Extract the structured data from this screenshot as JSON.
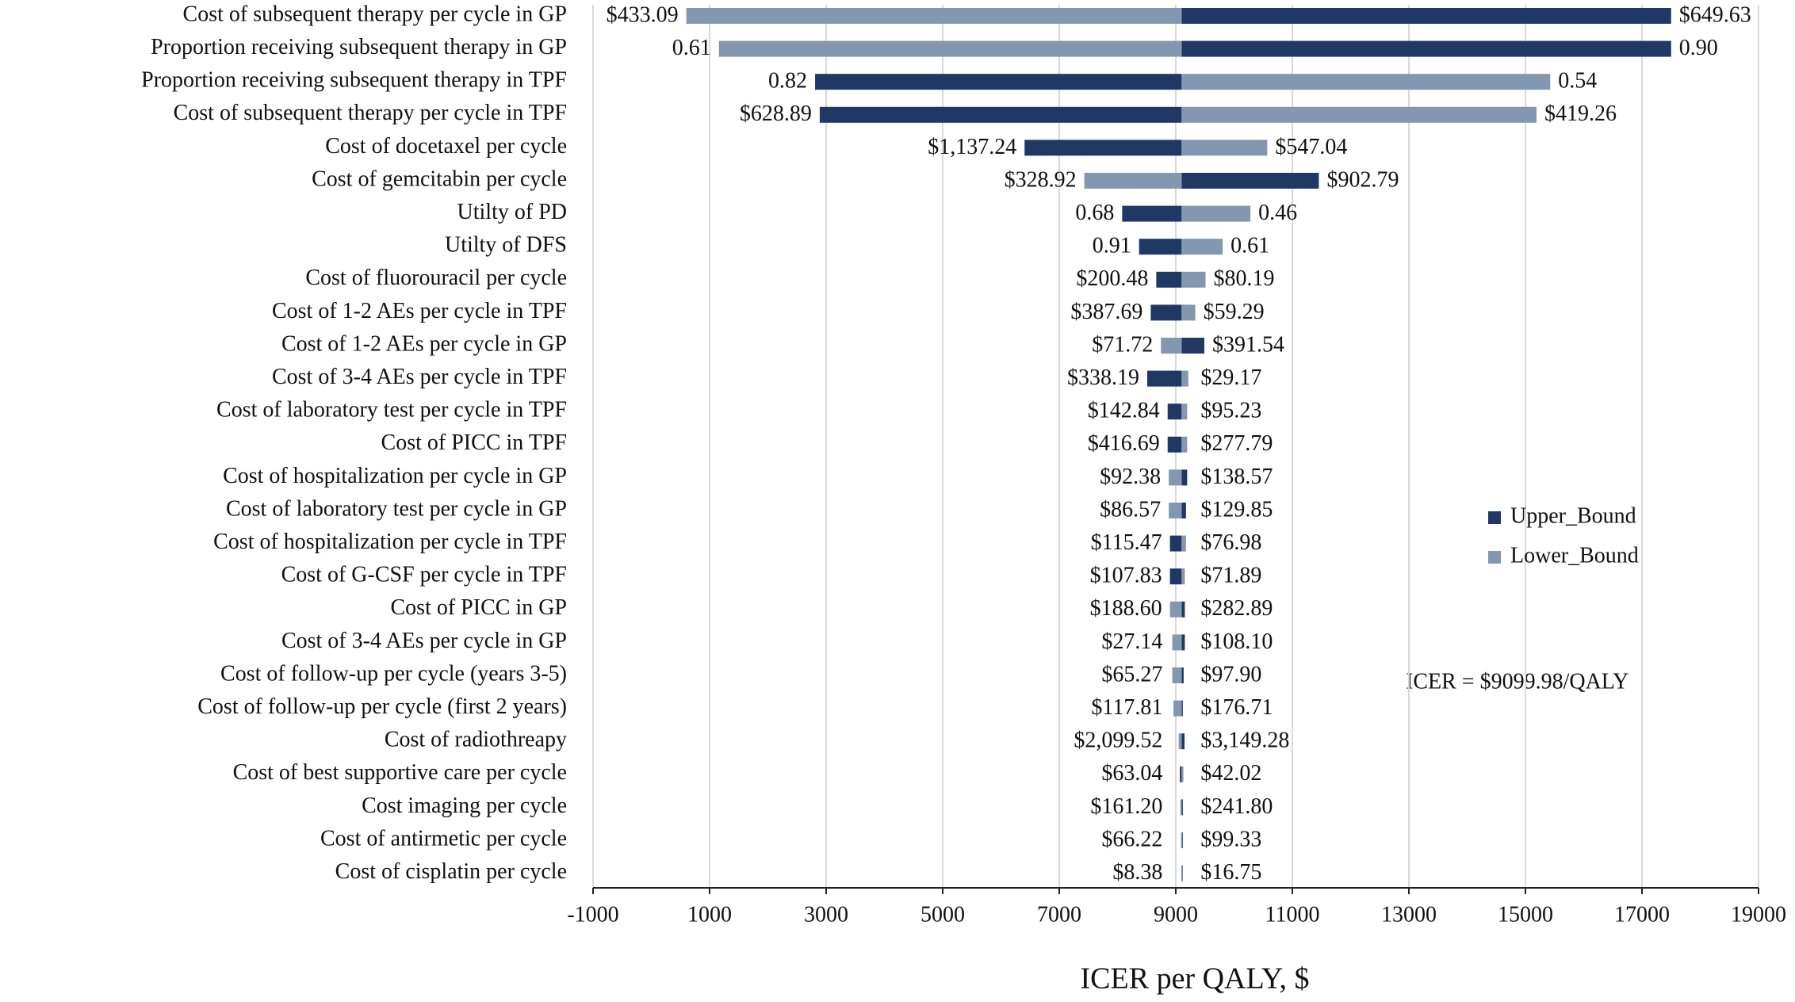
{
  "chart_data": {
    "type": "tornado",
    "xlabel": "ICER per QALY, $",
    "annotation": "ICER = $9099.98/QALY",
    "base_value": 9099.98,
    "xlim": [
      -1000,
      19000
    ],
    "xticks": [
      -1000,
      1000,
      3000,
      5000,
      7000,
      9000,
      11000,
      13000,
      15000,
      17000,
      19000
    ],
    "grid": true,
    "legend": "right",
    "categories": [
      "Cost of subsequent therapy  per cycle in GP",
      "Proportion receiving subsequent therapy in GP",
      "Proportion receiving subsequent therapy in TPF",
      "Cost of subsequent therapy  per cycle in TPF",
      "Cost of docetaxel per cycle",
      "Cost of gemcitabin per cycle",
      "Utilty of  PD",
      "Utilty of  DFS",
      "Cost of fluorouracil per cycle",
      "Cost of 1-2 AEs per cycle in TPF",
      "Cost of 1-2 AEs per cycle in GP",
      "Cost of 3-4 AEs per cycle in TPF",
      "Cost of laboratory test per cycle in TPF",
      "Cost of PICC in TPF",
      "Cost of hospitalization per cycle in GP",
      "Cost of laboratory test per cycle in GP",
      "Cost of hospitalization per cycle in TPF",
      "Cost of G-CSF per cycle in TPF",
      "Cost of PICC in GP",
      "Cost of 3-4 AEs per cycle in GP",
      "Cost of follow-up per cycle (years 3-5)",
      "Cost of follow-up per cycle (first 2 years)",
      "Cost of radiothreapy",
      "Cost of best supportive care per cycle",
      "Cost imaging per cycle",
      "Cost of antirmetic per cycle",
      "Cost of cisplatin per cycle"
    ],
    "series": [
      {
        "name": "Upper_Bound",
        "color": "#203864",
        "values": [
          17500,
          17500,
          2810,
          2890,
          6405,
          11455,
          8080,
          8370,
          8665,
          8570,
          9490,
          8510,
          8860,
          8860,
          9195,
          9175,
          8900,
          8900,
          9155,
          9155,
          9135,
          9115,
          9150,
          9070,
          9120,
          9110,
          9105
        ],
        "labels": [
          "$649.63",
          "0.90",
          "0.82",
          "$628.89",
          "$1,137.24",
          "$902.79",
          "0.68",
          "0.91",
          "$200.48",
          "$387.69",
          "$391.54",
          "$338.19",
          "$142.84",
          "$416.69",
          "$138.57",
          "$129.85",
          "$115.47",
          "$107.83",
          "$282.89",
          "$108.10",
          "$97.90",
          "$176.71",
          "$3,149.28",
          "$63.04",
          "$241.80",
          "$99.33",
          "$16.75"
        ]
      },
      {
        "name": "Lower_Bound",
        "color": "#8497b0",
        "values": [
          600,
          1160,
          15425,
          15190,
          10570,
          7430,
          10280,
          9805,
          9510,
          9335,
          8745,
          9215,
          9195,
          9195,
          8880,
          8880,
          9175,
          9155,
          8900,
          8940,
          8940,
          8960,
          9050,
          9130,
          9080,
          9090,
          9095
        ],
        "labels": [
          "$433.09",
          "0.61",
          "0.54",
          "$419.26",
          "$547.04",
          "$328.92",
          "0.46",
          "0.61",
          "$80.19",
          "$59.29",
          "$71.72",
          "$29.17",
          "$95.23",
          "$277.79",
          "$92.38",
          "$86.57",
          "$76.98",
          "$71.89",
          "$188.60",
          "$27.14",
          "$65.27",
          "$117.81",
          "$2,099.52",
          "$42.02",
          "$161.20",
          "$66.22",
          "$8.38"
        ]
      }
    ]
  }
}
